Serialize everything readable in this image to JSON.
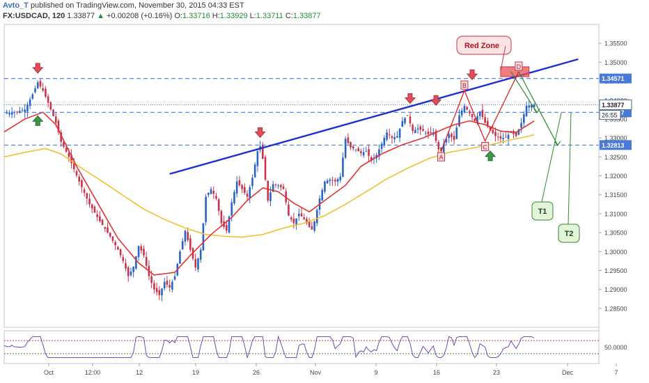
{
  "header": {
    "author": "Avto_T",
    "published": "published on TradingView.com, November 30, 2015 04:33 EST",
    "symbol": "FX:USDCAD, 120",
    "last": "1.33877",
    "change_arrow": "▲",
    "change": "+0.00208 (+0.16%)",
    "o_label": "O:",
    "o": "1.33716",
    "h_label": "H:",
    "h": "1.33929",
    "l_label": "L:",
    "l": "1.33711",
    "c_label": "C:",
    "c": "1.33877"
  },
  "colors": {
    "up": "#2962c8",
    "down": "#c8324a",
    "ma_fast": "#e53030",
    "ma_slow": "#f0c030",
    "trendline": "#1e2fd0",
    "level": "#4a7ad8",
    "rsi": "#5a3ab0",
    "annot": "#2e8a2e"
  },
  "chart_data": {
    "type": "candlestick",
    "ylim": [
      1.28,
      1.36
    ],
    "y_ticks": [
      "1.35500",
      "1.35000",
      "1.34500",
      "1.34000",
      "1.33500",
      "1.33000",
      "1.32500",
      "1.32000",
      "1.31500",
      "1.31000",
      "1.30500",
      "1.30000",
      "1.29500",
      "1.29000",
      "1.28500"
    ],
    "x_ticks": [
      "Oct",
      "12:00",
      "12",
      "19",
      "26",
      "Nov",
      "9",
      "16",
      "23",
      "Dec",
      "7"
    ],
    "close_path": [
      [
        0,
        1.3365
      ],
      [
        4,
        1.3368
      ],
      [
        8,
        1.3375
      ],
      [
        11,
        1.3415
      ],
      [
        13,
        1.3447
      ],
      [
        15,
        1.3425
      ],
      [
        17,
        1.3393
      ],
      [
        20,
        1.334
      ],
      [
        22,
        1.329
      ],
      [
        25,
        1.325
      ],
      [
        29,
        1.3185
      ],
      [
        33,
        1.3125
      ],
      [
        37,
        1.308
      ],
      [
        41,
        1.304
      ],
      [
        44,
        1.3005
      ],
      [
        46,
        1.2975
      ],
      [
        48,
        1.2935
      ],
      [
        50,
        1.296
      ],
      [
        52,
        1.3015
      ],
      [
        54,
        1.299
      ],
      [
        56,
        1.2935
      ],
      [
        58,
        1.29
      ],
      [
        60,
        1.2885
      ],
      [
        62,
        1.292
      ],
      [
        64,
        1.2905
      ],
      [
        66,
        1.2935
      ],
      [
        68,
        1.3
      ],
      [
        70,
        1.3055
      ],
      [
        72,
        1.3005
      ],
      [
        74,
        1.2958
      ],
      [
        76,
        1.3005
      ],
      [
        78,
        1.3145
      ],
      [
        80,
        1.3165
      ],
      [
        82,
        1.314
      ],
      [
        84,
        1.3075
      ],
      [
        86,
        1.3055
      ],
      [
        88,
        1.313
      ],
      [
        90,
        1.3185
      ],
      [
        92,
        1.3165
      ],
      [
        94,
        1.3145
      ],
      [
        96,
        1.3195
      ],
      [
        98,
        1.3265
      ],
      [
        99,
        1.3278
      ],
      [
        100,
        1.3245
      ],
      [
        102,
        1.3135
      ],
      [
        104,
        1.3178
      ],
      [
        106,
        1.3175
      ],
      [
        108,
        1.3165
      ],
      [
        110,
        1.3095
      ],
      [
        112,
        1.3075
      ],
      [
        114,
        1.31
      ],
      [
        116,
        1.3085
      ],
      [
        118,
        1.3065
      ],
      [
        119,
        1.3058
      ],
      [
        120,
        1.308
      ],
      [
        122,
        1.314
      ],
      [
        124,
        1.3185
      ],
      [
        126,
        1.319
      ],
      [
        128,
        1.3185
      ],
      [
        130,
        1.3198
      ],
      [
        132,
        1.3298
      ],
      [
        134,
        1.3275
      ],
      [
        136,
        1.327
      ],
      [
        138,
        1.326
      ],
      [
        140,
        1.3265
      ],
      [
        142,
        1.324
      ],
      [
        144,
        1.3255
      ],
      [
        146,
        1.3285
      ],
      [
        148,
        1.3315
      ],
      [
        150,
        1.33
      ],
      [
        152,
        1.3305
      ],
      [
        154,
        1.3345
      ],
      [
        156,
        1.336
      ],
      [
        158,
        1.3318
      ],
      [
        160,
        1.3325
      ],
      [
        162,
        1.3318
      ],
      [
        164,
        1.331
      ],
      [
        166,
        1.3315
      ],
      [
        168,
        1.327
      ],
      [
        169,
        1.3265
      ],
      [
        170,
        1.3285
      ],
      [
        172,
        1.331
      ],
      [
        174,
        1.3295
      ],
      [
        176,
        1.336
      ],
      [
        178,
        1.3385
      ],
      [
        180,
        1.3365
      ],
      [
        182,
        1.3345
      ],
      [
        184,
        1.337
      ],
      [
        186,
        1.334
      ],
      [
        188,
        1.332
      ],
      [
        190,
        1.3305
      ],
      [
        192,
        1.3298
      ],
      [
        194,
        1.3302
      ],
      [
        196,
        1.3315
      ],
      [
        198,
        1.3305
      ],
      [
        200,
        1.334
      ],
      [
        202,
        1.3385
      ],
      [
        205,
        1.3388
      ]
    ],
    "ma_fast_path": [
      [
        0,
        1.3316
      ],
      [
        8,
        1.335
      ],
      [
        15,
        1.3368
      ],
      [
        20,
        1.3335
      ],
      [
        28,
        1.3225
      ],
      [
        36,
        1.313
      ],
      [
        44,
        1.3035
      ],
      [
        52,
        1.297
      ],
      [
        58,
        1.2938
      ],
      [
        66,
        1.2945
      ],
      [
        72,
        1.299
      ],
      [
        80,
        1.3045
      ],
      [
        88,
        1.309
      ],
      [
        94,
        1.3135
      ],
      [
        100,
        1.3168
      ],
      [
        106,
        1.3158
      ],
      [
        112,
        1.3128
      ],
      [
        118,
        1.3105
      ],
      [
        124,
        1.3135
      ],
      [
        132,
        1.3175
      ],
      [
        138,
        1.3225
      ],
      [
        146,
        1.3258
      ],
      [
        154,
        1.3282
      ],
      [
        162,
        1.33
      ],
      [
        168,
        1.3318
      ],
      [
        174,
        1.3335
      ],
      [
        180,
        1.3345
      ],
      [
        186,
        1.3335
      ],
      [
        192,
        1.3318
      ],
      [
        198,
        1.3315
      ],
      [
        205,
        1.3345
      ]
    ],
    "ma_slow_path": [
      [
        0,
        1.325
      ],
      [
        8,
        1.3262
      ],
      [
        16,
        1.3272
      ],
      [
        22,
        1.3258
      ],
      [
        30,
        1.322
      ],
      [
        38,
        1.3185
      ],
      [
        46,
        1.3148
      ],
      [
        54,
        1.3112
      ],
      [
        62,
        1.3085
      ],
      [
        70,
        1.3062
      ],
      [
        78,
        1.3045
      ],
      [
        86,
        1.304
      ],
      [
        92,
        1.3038
      ],
      [
        100,
        1.3045
      ],
      [
        108,
        1.3062
      ],
      [
        116,
        1.3075
      ],
      [
        124,
        1.3095
      ],
      [
        132,
        1.3125
      ],
      [
        140,
        1.3158
      ],
      [
        148,
        1.3192
      ],
      [
        156,
        1.322
      ],
      [
        164,
        1.3245
      ],
      [
        172,
        1.3262
      ],
      [
        180,
        1.3272
      ],
      [
        188,
        1.3282
      ],
      [
        196,
        1.3295
      ],
      [
        205,
        1.3308
      ]
    ],
    "trendline": [
      [
        64,
        1.3205
      ],
      [
        222,
        1.3508
      ]
    ],
    "levels": [
      {
        "label": "1.34571",
        "y": 1.34571
      },
      {
        "label": "1.33677",
        "y": 1.33677
      },
      {
        "label": "1.32813",
        "y": 1.32813
      }
    ],
    "price_line": {
      "label": "1.33877",
      "y": 1.33877
    },
    "countdown": "26:55",
    "pattern": {
      "points": [
        {
          "label": "A",
          "x": 169,
          "y": 1.3265
        },
        {
          "label": "B",
          "x": 178,
          "y": 1.3425
        },
        {
          "label": "C",
          "x": 186,
          "y": 1.3292
        },
        {
          "label": "D",
          "x": 199,
          "y": 1.3475
        }
      ],
      "zone_label": "Red Zone",
      "zone_y": [
        1.3462,
        1.3488
      ],
      "zone_x": [
        192,
        203
      ]
    },
    "arrows_down": [
      [
        13,
        1.3475
      ],
      [
        99,
        1.3305
      ],
      [
        157,
        1.3395
      ],
      [
        167,
        1.339
      ],
      [
        181,
        1.3458
      ]
    ],
    "arrows_up": [
      [
        13,
        1.3355
      ],
      [
        188,
        1.3262
      ]
    ],
    "targets": {
      "t1": "T1",
      "t2": "T2",
      "paths": [
        [
          [
            196,
            1.3475
          ],
          [
            206,
            1.3368
          ]
        ],
        [
          [
            199,
            1.3475
          ],
          [
            214,
            1.3282
          ]
        ]
      ]
    },
    "rsi": {
      "levels": [
        "50.0000"
      ],
      "overbought": 70,
      "oversold": 30
    }
  }
}
